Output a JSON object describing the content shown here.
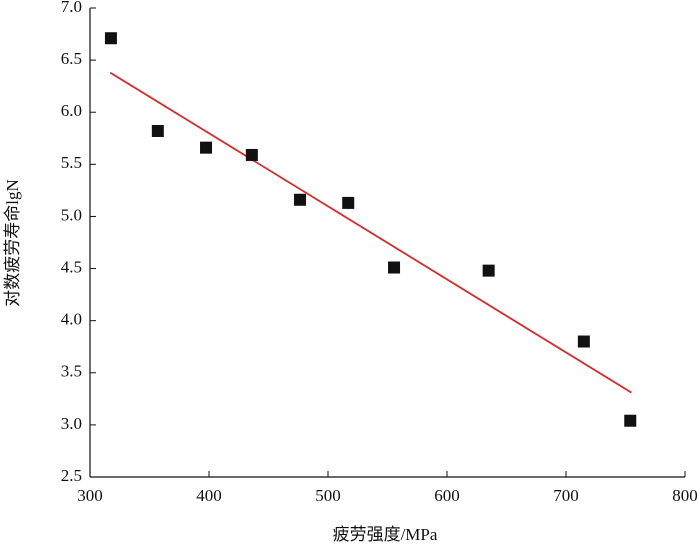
{
  "chart_data": {
    "type": "scatter",
    "x_label": "疲劳强度/MPa",
    "y_label": "对数疲劳寿命lgN",
    "x": [
      317.6,
      357,
      397.5,
      436,
      476.5,
      517,
      555.5,
      635,
      715,
      754
    ],
    "values": [
      6.71,
      5.82,
      5.66,
      5.59,
      5.16,
      5.13,
      4.51,
      4.48,
      3.8,
      3.04
    ],
    "color": "#111111",
    "marker": "square",
    "trendline": {
      "x": [
        317,
        755
      ],
      "values": [
        6.38,
        3.31
      ],
      "color": "#d62a2a"
    },
    "xlim": [
      300,
      800
    ],
    "xticks": [
      300,
      400,
      500,
      600,
      700,
      800
    ],
    "ylim": [
      2.5,
      7
    ],
    "yticks": [
      2.5,
      {
        "value": 3,
        "label": "3.0"
      },
      3.5,
      {
        "value": 4,
        "label": "4.0"
      },
      4.5,
      {
        "value": 5,
        "label": "5.0"
      },
      5.5,
      {
        "value": 6,
        "label": "6.0"
      },
      6.5,
      {
        "value": 7,
        "label": "7.0"
      }
    ]
  }
}
